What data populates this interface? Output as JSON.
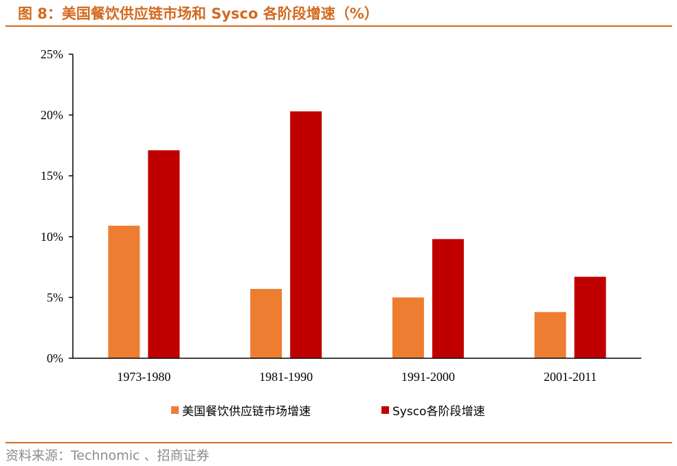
{
  "figure": {
    "title": "图 8：美国餐饮供应链市场和 Sysco 各阶段增速（%）",
    "source": "资料来源：Technomic 、招商证券"
  },
  "colors": {
    "accent": "#D2691E",
    "series_a": "#ED7D31",
    "series_b": "#C00000"
  },
  "chart_data": {
    "type": "bar",
    "title": "美国餐饮供应链市场和 Sysco 各阶段增速（%）",
    "xlabel": "",
    "ylabel": "",
    "categories": [
      "1973-1980",
      "1981-1990",
      "1991-2000",
      "2001-2011"
    ],
    "series": [
      {
        "name": "美国餐饮供应链市场增速",
        "color": "#ED7D31",
        "values": [
          10.9,
          5.7,
          5.0,
          3.8
        ]
      },
      {
        "name": "Sysco各阶段增速",
        "color": "#C00000",
        "values": [
          17.1,
          20.3,
          9.8,
          6.7
        ]
      }
    ],
    "ylim": [
      0,
      25
    ],
    "yticks": [
      0,
      5,
      10,
      15,
      20,
      25
    ],
    "ytick_labels": [
      "0%",
      "5%",
      "10%",
      "15%",
      "20%",
      "25%"
    ],
    "grid": false,
    "legend": "bottom"
  }
}
